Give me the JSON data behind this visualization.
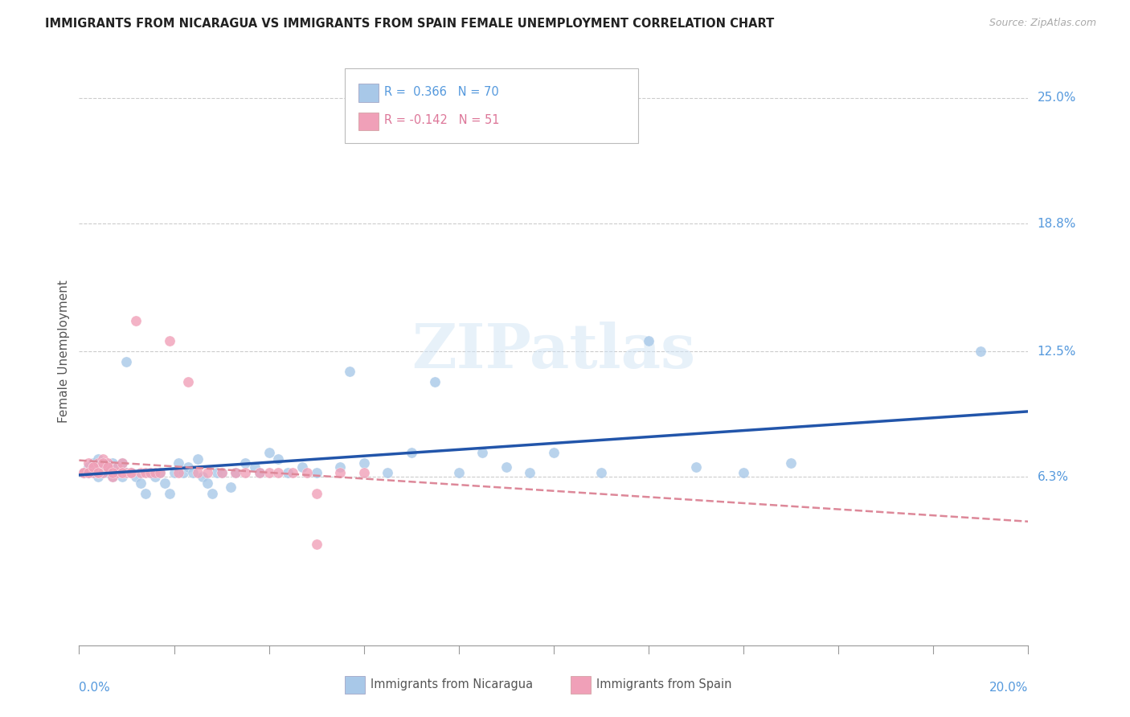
{
  "title": "IMMIGRANTS FROM NICARAGUA VS IMMIGRANTS FROM SPAIN FEMALE UNEMPLOYMENT CORRELATION CHART",
  "source": "Source: ZipAtlas.com",
  "ylabel": "Female Unemployment",
  "ytick_labels": [
    "25.0%",
    "18.8%",
    "12.5%",
    "6.3%"
  ],
  "ytick_values": [
    0.25,
    0.188,
    0.125,
    0.063
  ],
  "xlim": [
    0.0,
    0.2
  ],
  "ylim": [
    -0.02,
    0.27
  ],
  "watermark_text": "ZIPatlas",
  "color_nicaragua": "#a8c8e8",
  "color_spain": "#f0a0b8",
  "color_line_nic": "#2255aa",
  "color_line_spain": "#dd8899",
  "legend_text1": "R =  0.366   N = 70",
  "legend_text2": "R = -0.142   N = 51",
  "nicaragua_x": [
    0.001,
    0.002,
    0.003,
    0.003,
    0.004,
    0.004,
    0.005,
    0.005,
    0.006,
    0.006,
    0.007,
    0.007,
    0.008,
    0.008,
    0.009,
    0.009,
    0.01,
    0.01,
    0.011,
    0.012,
    0.013,
    0.014,
    0.015,
    0.016,
    0.017,
    0.018,
    0.019,
    0.02,
    0.021,
    0.022,
    0.023,
    0.024,
    0.025,
    0.026,
    0.027,
    0.028,
    0.029,
    0.03,
    0.032,
    0.033,
    0.035,
    0.037,
    0.038,
    0.04,
    0.042,
    0.044,
    0.047,
    0.05,
    0.055,
    0.057,
    0.06,
    0.065,
    0.07,
    0.075,
    0.08,
    0.085,
    0.09,
    0.095,
    0.1,
    0.11,
    0.12,
    0.13,
    0.14,
    0.15,
    0.19,
    0.001,
    0.002,
    0.004,
    0.007,
    0.01
  ],
  "nicaragua_y": [
    0.065,
    0.068,
    0.065,
    0.07,
    0.072,
    0.063,
    0.07,
    0.065,
    0.068,
    0.065,
    0.07,
    0.063,
    0.065,
    0.068,
    0.07,
    0.063,
    0.065,
    0.12,
    0.065,
    0.063,
    0.06,
    0.055,
    0.065,
    0.063,
    0.065,
    0.06,
    0.055,
    0.065,
    0.07,
    0.065,
    0.068,
    0.065,
    0.072,
    0.063,
    0.06,
    0.055,
    0.065,
    0.065,
    0.058,
    0.065,
    0.07,
    0.068,
    0.065,
    0.075,
    0.072,
    0.065,
    0.068,
    0.065,
    0.068,
    0.115,
    0.07,
    0.065,
    0.075,
    0.11,
    0.065,
    0.075,
    0.068,
    0.065,
    0.075,
    0.065,
    0.13,
    0.068,
    0.065,
    0.07,
    0.125,
    0.065,
    0.065,
    0.065,
    0.065,
    0.065
  ],
  "spain_x": [
    0.001,
    0.002,
    0.002,
    0.003,
    0.003,
    0.004,
    0.004,
    0.005,
    0.005,
    0.006,
    0.006,
    0.007,
    0.007,
    0.008,
    0.008,
    0.009,
    0.009,
    0.01,
    0.011,
    0.012,
    0.013,
    0.014,
    0.015,
    0.016,
    0.017,
    0.019,
    0.021,
    0.023,
    0.025,
    0.027,
    0.03,
    0.033,
    0.035,
    0.038,
    0.04,
    0.042,
    0.045,
    0.048,
    0.05,
    0.055,
    0.06,
    0.001,
    0.002,
    0.003,
    0.004,
    0.005,
    0.006,
    0.007,
    0.009,
    0.011,
    0.05
  ],
  "spain_y": [
    0.065,
    0.07,
    0.065,
    0.068,
    0.065,
    0.065,
    0.07,
    0.072,
    0.065,
    0.07,
    0.068,
    0.065,
    0.063,
    0.065,
    0.068,
    0.07,
    0.065,
    0.065,
    0.065,
    0.14,
    0.065,
    0.065,
    0.065,
    0.065,
    0.065,
    0.13,
    0.065,
    0.11,
    0.065,
    0.065,
    0.065,
    0.065,
    0.065,
    0.065,
    0.065,
    0.065,
    0.065,
    0.065,
    0.055,
    0.065,
    0.065,
    0.065,
    0.065,
    0.068,
    0.065,
    0.07,
    0.068,
    0.065,
    0.065,
    0.065,
    0.03
  ]
}
